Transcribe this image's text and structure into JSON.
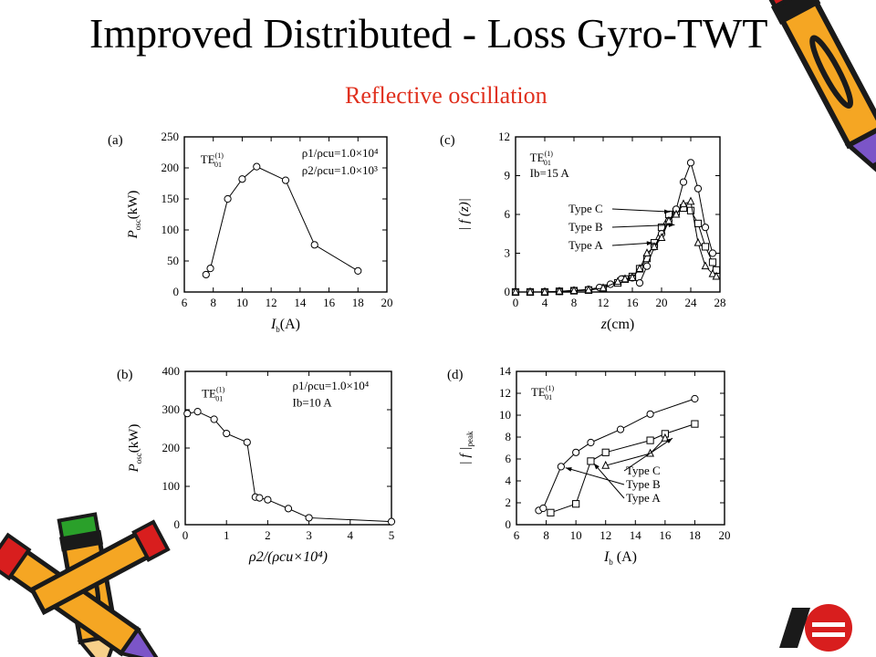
{
  "slide": {
    "title": "Improved Distributed - Loss Gyro-TWT",
    "subtitle": "Reflective  oscillation",
    "colors": {
      "subtitle": "#e0301e",
      "pencil_body": "#f5a623",
      "pencil_outline": "#1a1a1a",
      "eraser": "#d81e1e",
      "ferrule": "#7b55c8"
    }
  },
  "decorations": [
    {
      "name": "pencil-icon",
      "where": "top-right"
    },
    {
      "name": "pencil-icon",
      "where": "bottom-left"
    },
    {
      "name": "logo-icon",
      "where": "bottom-right"
    }
  ],
  "chart_data": [
    {
      "id": "a",
      "type": "scatter",
      "panel_label": "(a)",
      "xlim": [
        6,
        20
      ],
      "ylim": [
        0,
        250
      ],
      "xticks": [
        6,
        8,
        10,
        12,
        14,
        16,
        18,
        20
      ],
      "yticks": [
        0,
        50,
        100,
        150,
        200,
        250
      ],
      "xlabel": {
        "main": "I",
        "sub": "b",
        "rest": "(A)"
      },
      "ylabel": {
        "main": "P",
        "sub": "osc",
        "rest": "(kW)"
      },
      "annotations": [
        {
          "text": "TE",
          "sup": "(1)",
          "sub": "01",
          "dx": 0.08,
          "dy": 0.83
        },
        {
          "text": "ρ1/ρcu=1.0×10⁴",
          "dx": 0.58,
          "dy": 0.87
        },
        {
          "text": "ρ2/ρcu=1.0×10³",
          "dx": 0.58,
          "dy": 0.76
        }
      ],
      "series": [
        {
          "values": [
            [
              7.5,
              28
            ],
            [
              7.8,
              38
            ],
            [
              9,
              150
            ],
            [
              10,
              182
            ],
            [
              11,
              202
            ],
            [
              13,
              180
            ],
            [
              15,
              76
            ],
            [
              18,
              34
            ]
          ],
          "marker": "circle",
          "line": "straight"
        }
      ]
    },
    {
      "id": "b",
      "type": "scatter",
      "panel_label": "(b)",
      "xlim": [
        0,
        5
      ],
      "ylim": [
        0,
        400
      ],
      "xticks": [
        0,
        1,
        2,
        3,
        4,
        5
      ],
      "yticks": [
        0,
        100,
        200,
        300,
        400
      ],
      "xlabel": {
        "main": "ρ2/(ρcu×10⁴)"
      },
      "ylabel": {
        "main": "P",
        "sub": "osc",
        "rest": "(kW)"
      },
      "annotations": [
        {
          "text": "TE",
          "sup": "(1)",
          "sub": "01",
          "dx": 0.08,
          "dy": 0.83
        },
        {
          "text": "ρ1/ρcu=1.0×10⁴",
          "dx": 0.52,
          "dy": 0.88
        },
        {
          "text": "Ib=10 A",
          "dx": 0.52,
          "dy": 0.77
        }
      ],
      "series": [
        {
          "values": [
            [
              0.05,
              290
            ],
            [
              0.3,
              295
            ],
            [
              0.7,
              275
            ],
            [
              1.0,
              238
            ],
            [
              1.5,
              215
            ],
            [
              1.7,
              72
            ],
            [
              1.8,
              70
            ],
            [
              2.0,
              65
            ],
            [
              2.5,
              42
            ],
            [
              3.0,
              18
            ],
            [
              5.0,
              8
            ]
          ],
          "marker": "circle",
          "line": "straight"
        }
      ]
    },
    {
      "id": "c",
      "type": "line",
      "panel_label": "(c)",
      "xlim": [
        0,
        28
      ],
      "ylim": [
        0,
        12
      ],
      "xticks": [
        0,
        4,
        8,
        12,
        16,
        20,
        24,
        28
      ],
      "yticks": [
        0,
        3,
        6,
        9,
        12
      ],
      "xlabel": {
        "main": "z",
        "rest": "(cm)"
      },
      "ylabel": {
        "main": "| f (z)|"
      },
      "annotations": [
        {
          "text": "TE",
          "sup": "(1)",
          "sub": "01",
          "dx": 0.07,
          "dy": 0.84
        },
        {
          "text": "Ib=15 A",
          "dx": 0.07,
          "dy": 0.74
        }
      ],
      "callouts": [
        {
          "label": "Type C",
          "target": [
            21.2,
            6.2
          ]
        },
        {
          "label": "Type B",
          "target": [
            21.8,
            5.2
          ]
        },
        {
          "label": "Type A",
          "target": [
            18.8,
            3.8
          ]
        }
      ],
      "series": [
        {
          "name": "Type C",
          "marker": "square",
          "values": [
            [
              0,
              0
            ],
            [
              2,
              0
            ],
            [
              4,
              0
            ],
            [
              6,
              0.05
            ],
            [
              8,
              0.1
            ],
            [
              10,
              0.15
            ],
            [
              12,
              0.3
            ],
            [
              14,
              0.7
            ],
            [
              15,
              1.0
            ],
            [
              16,
              1.2
            ],
            [
              17,
              1.8
            ],
            [
              18,
              2.6
            ],
            [
              19,
              3.8
            ],
            [
              20,
              5.0
            ],
            [
              21,
              6.0
            ],
            [
              22,
              6.2
            ],
            [
              23,
              6.5
            ],
            [
              24,
              6.3
            ],
            [
              25,
              5.3
            ],
            [
              26,
              3.5
            ],
            [
              27,
              2.3
            ],
            [
              27.5,
              1.7
            ]
          ]
        },
        {
          "name": "Type B",
          "marker": "circle",
          "values": [
            [
              0,
              0
            ],
            [
              2,
              0
            ],
            [
              4,
              0
            ],
            [
              6,
              0.05
            ],
            [
              8,
              0.12
            ],
            [
              10,
              0.2
            ],
            [
              11.5,
              0.35
            ],
            [
              13,
              0.6
            ],
            [
              14.5,
              1.0
            ],
            [
              16,
              1.1
            ],
            [
              17,
              0.7
            ],
            [
              18,
              2.0
            ],
            [
              19,
              3.5
            ],
            [
              20,
              4.5
            ],
            [
              21,
              5.5
            ],
            [
              22,
              6.4
            ],
            [
              23,
              8.5
            ],
            [
              24,
              10.0
            ],
            [
              25,
              8.0
            ],
            [
              26,
              5.0
            ],
            [
              27,
              3.0
            ]
          ]
        },
        {
          "name": "Type A",
          "marker": "triangle",
          "values": [
            [
              0,
              0
            ],
            [
              2,
              0
            ],
            [
              4,
              0
            ],
            [
              6,
              0.05
            ],
            [
              8,
              0.1
            ],
            [
              10,
              0.15
            ],
            [
              12,
              0.3
            ],
            [
              14,
              0.8
            ],
            [
              15,
              1.0
            ],
            [
              16,
              1.1
            ],
            [
              17,
              1.8
            ],
            [
              18,
              3.0
            ],
            [
              19,
              3.5
            ],
            [
              20,
              4.2
            ],
            [
              21,
              5.5
            ],
            [
              22,
              6.0
            ],
            [
              23,
              6.8
            ],
            [
              24,
              7.0
            ],
            [
              25,
              3.8
            ],
            [
              26,
              2.0
            ],
            [
              27,
              1.4
            ],
            [
              27.5,
              1.2
            ]
          ]
        }
      ]
    },
    {
      "id": "d",
      "type": "scatter",
      "panel_label": "(d)",
      "xlim": [
        6,
        20
      ],
      "ylim": [
        0,
        14
      ],
      "xticks": [
        6,
        8,
        10,
        12,
        14,
        16,
        18,
        20
      ],
      "yticks": [
        0,
        2,
        4,
        6,
        8,
        10,
        12,
        14
      ],
      "xlabel": {
        "main": "I",
        "sub": "b",
        "rest": " (A)"
      },
      "ylabel": {
        "main": "| f |",
        "sub": "peak"
      },
      "annotations": [
        {
          "text": "TE",
          "sup": "(1)",
          "sub": "01",
          "dx": 0.07,
          "dy": 0.84
        }
      ],
      "callouts": [
        {
          "label": "Type C",
          "target": [
            16.5,
            7.9
          ]
        },
        {
          "label": "Type B",
          "target": [
            9.3,
            5.2
          ]
        },
        {
          "label": "Type A",
          "target": [
            11.2,
            5.6
          ]
        }
      ],
      "series": [
        {
          "name": "circles",
          "marker": "circle",
          "values": [
            [
              7.5,
              1.3
            ],
            [
              7.8,
              1.5
            ],
            [
              9,
              5.3
            ],
            [
              10,
              6.6
            ],
            [
              11,
              7.5
            ],
            [
              13,
              8.7
            ],
            [
              15,
              10.1
            ],
            [
              18,
              11.5
            ]
          ]
        },
        {
          "name": "squares",
          "marker": "square",
          "values": [
            [
              8.3,
              1.1
            ],
            [
              10,
              1.9
            ],
            [
              11,
              5.8
            ],
            [
              12,
              6.6
            ],
            [
              15,
              7.7
            ],
            [
              16,
              8.3
            ],
            [
              18,
              9.2
            ]
          ]
        },
        {
          "name": "triangles",
          "marker": "triangle",
          "values": [
            [
              12,
              5.4
            ],
            [
              15,
              6.5
            ],
            [
              16,
              7.9
            ]
          ]
        }
      ]
    }
  ]
}
